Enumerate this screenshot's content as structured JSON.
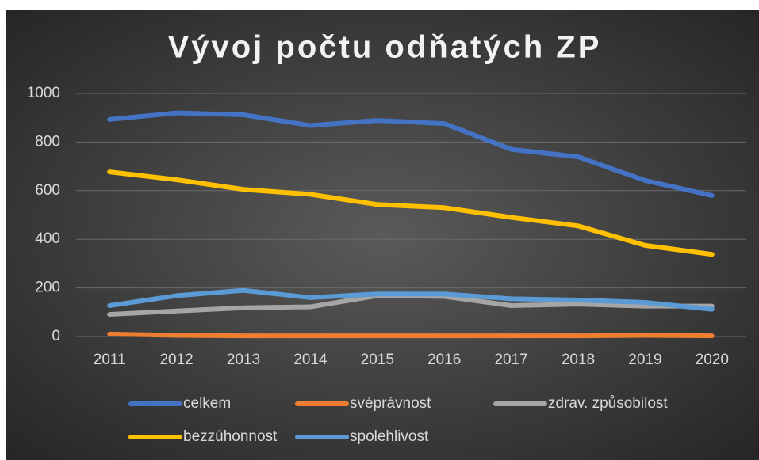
{
  "chart_data": {
    "type": "line",
    "title": "Vývoj počtu odňatých ZP",
    "categories": [
      "2011",
      "2012",
      "2013",
      "2014",
      "2015",
      "2016",
      "2017",
      "2018",
      "2019",
      "2020"
    ],
    "series": [
      {
        "name": "celkem",
        "color": "#4472c4",
        "values": [
          893,
          920,
          912,
          868,
          889,
          876,
          770,
          739,
          642,
          580
        ]
      },
      {
        "name": "svéprávnost",
        "color": "#ed7d31",
        "values": [
          10,
          5,
          3,
          3,
          3,
          3,
          3,
          3,
          5,
          3
        ]
      },
      {
        "name": "zdrav. způsobilost",
        "color": "#a5a5a5",
        "values": [
          91,
          105,
          118,
          122,
          168,
          165,
          127,
          133,
          125,
          125
        ]
      },
      {
        "name": "bezzúhonnost",
        "color": "#ffc000",
        "values": [
          677,
          645,
          605,
          585,
          543,
          530,
          490,
          455,
          375,
          338
        ]
      },
      {
        "name": "spolehlivost",
        "color": "#5b9bd5",
        "values": [
          127,
          168,
          190,
          160,
          175,
          175,
          155,
          150,
          140,
          112
        ]
      }
    ],
    "ylim": [
      0,
      1000
    ],
    "yticks": [
      0,
      200,
      400,
      600,
      800,
      1000
    ],
    "grid": true,
    "legend": "bottom"
  }
}
